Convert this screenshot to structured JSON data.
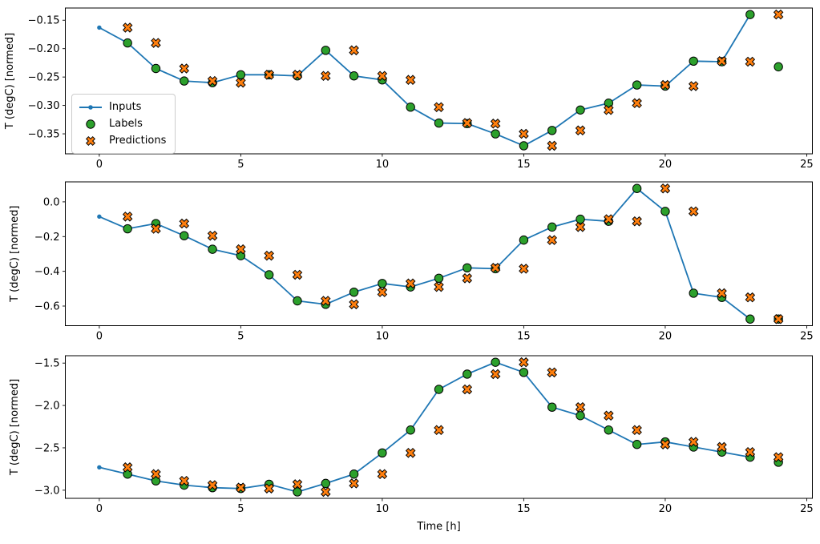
{
  "colors": {
    "inputs": "#1f77b4",
    "labels": "#2ca02c",
    "predictions": "#ff7f0e",
    "marker_edge": "#000000",
    "axes": "#000000",
    "legend_border": "#cccccc"
  },
  "legend": {
    "entries": [
      {
        "label": "Inputs"
      },
      {
        "label": "Labels"
      },
      {
        "label": "Predictions"
      }
    ]
  },
  "chart_data": [
    {
      "type": "line",
      "ylabel": "T (degC) [normed]",
      "xlabel": "",
      "grid": false,
      "xlim": [
        -1.2,
        25.2
      ],
      "ylim": [
        -0.3852,
        -0.1285
      ],
      "xticks": {
        "values": [
          0,
          5,
          10,
          15,
          20,
          25
        ],
        "labels": [
          "0",
          "5",
          "10",
          "15",
          "20",
          "25"
        ]
      },
      "yticks": {
        "values": [
          -0.15,
          -0.2,
          -0.25,
          -0.3,
          -0.35
        ],
        "labels": [
          "−0.15",
          "−0.20",
          "−0.25",
          "−0.30",
          "−0.35"
        ]
      },
      "series": [
        {
          "name": "Inputs",
          "type": "line",
          "marker": "dot",
          "color": "#1f77b4",
          "x": [
            0,
            1,
            2,
            3,
            4,
            5,
            6,
            7,
            8,
            9,
            10,
            11,
            12,
            13,
            14,
            15,
            16,
            17,
            18,
            19,
            20,
            21,
            22,
            23
          ],
          "y": [
            -0.163,
            -0.19,
            -0.235,
            -0.257,
            -0.26,
            -0.246,
            -0.246,
            -0.248,
            -0.203,
            -0.248,
            -0.255,
            -0.303,
            -0.331,
            -0.332,
            -0.35,
            -0.371,
            -0.344,
            -0.308,
            -0.296,
            -0.264,
            -0.266,
            -0.222,
            -0.223,
            -0.14
          ]
        },
        {
          "name": "Labels",
          "type": "scatter",
          "marker": "circle",
          "color": "#2ca02c",
          "edge": "#000000",
          "x": [
            1,
            2,
            3,
            4,
            5,
            6,
            7,
            8,
            9,
            10,
            11,
            12,
            13,
            14,
            15,
            16,
            17,
            18,
            19,
            20,
            21,
            22,
            23,
            24
          ],
          "y": [
            -0.19,
            -0.235,
            -0.257,
            -0.26,
            -0.246,
            -0.246,
            -0.248,
            -0.203,
            -0.248,
            -0.255,
            -0.303,
            -0.331,
            -0.332,
            -0.35,
            -0.371,
            -0.344,
            -0.308,
            -0.296,
            -0.264,
            -0.266,
            -0.222,
            -0.223,
            -0.14,
            -0.232
          ]
        },
        {
          "name": "Predictions",
          "type": "scatter",
          "marker": "X",
          "color": "#ff7f0e",
          "edge": "#000000",
          "x": [
            1,
            2,
            3,
            4,
            5,
            6,
            7,
            8,
            9,
            10,
            11,
            12,
            13,
            14,
            15,
            16,
            17,
            18,
            19,
            20,
            21,
            22,
            23,
            24
          ],
          "y": [
            -0.163,
            -0.19,
            -0.235,
            -0.257,
            -0.26,
            -0.246,
            -0.246,
            -0.248,
            -0.203,
            -0.248,
            -0.255,
            -0.303,
            -0.331,
            -0.332,
            -0.35,
            -0.371,
            -0.344,
            -0.308,
            -0.296,
            -0.264,
            -0.266,
            -0.222,
            -0.223,
            -0.14
          ]
        }
      ]
    },
    {
      "type": "line",
      "ylabel": "T (degC) [normed]",
      "xlabel": "",
      "grid": false,
      "xlim": [
        -1.2,
        25.2
      ],
      "ylim": [
        -0.713,
        0.115
      ],
      "xticks": {
        "values": [
          0,
          5,
          10,
          15,
          20,
          25
        ],
        "labels": [
          "0",
          "5",
          "10",
          "15",
          "20",
          "25"
        ]
      },
      "yticks": {
        "values": [
          0.0,
          -0.2,
          -0.4,
          -0.6
        ],
        "labels": [
          "0.0",
          "−0.2",
          "−0.4",
          "−0.6"
        ]
      },
      "series": [
        {
          "name": "Inputs",
          "type": "line",
          "marker": "dot",
          "color": "#1f77b4",
          "x": [
            0,
            1,
            2,
            3,
            4,
            5,
            6,
            7,
            8,
            9,
            10,
            11,
            12,
            13,
            14,
            15,
            16,
            17,
            18,
            19,
            20,
            21,
            22,
            23
          ],
          "y": [
            -0.085,
            -0.155,
            -0.125,
            -0.195,
            -0.273,
            -0.31,
            -0.42,
            -0.57,
            -0.59,
            -0.52,
            -0.47,
            -0.49,
            -0.44,
            -0.38,
            -0.385,
            -0.22,
            -0.145,
            -0.1,
            -0.112,
            0.077,
            -0.055,
            -0.526,
            -0.55,
            -0.675
          ]
        },
        {
          "name": "Labels",
          "type": "scatter",
          "marker": "circle",
          "color": "#2ca02c",
          "edge": "#000000",
          "x": [
            1,
            2,
            3,
            4,
            5,
            6,
            7,
            8,
            9,
            10,
            11,
            12,
            13,
            14,
            15,
            16,
            17,
            18,
            19,
            20,
            21,
            22,
            23,
            24
          ],
          "y": [
            -0.155,
            -0.125,
            -0.195,
            -0.273,
            -0.31,
            -0.42,
            -0.57,
            -0.59,
            -0.52,
            -0.47,
            -0.49,
            -0.44,
            -0.38,
            -0.385,
            -0.22,
            -0.145,
            -0.1,
            -0.112,
            0.077,
            -0.055,
            -0.526,
            -0.55,
            -0.675,
            -0.675
          ]
        },
        {
          "name": "Predictions",
          "type": "scatter",
          "marker": "X",
          "color": "#ff7f0e",
          "edge": "#000000",
          "x": [
            1,
            2,
            3,
            4,
            5,
            6,
            7,
            8,
            9,
            10,
            11,
            12,
            13,
            14,
            15,
            16,
            17,
            18,
            19,
            20,
            21,
            22,
            23,
            24
          ],
          "y": [
            -0.085,
            -0.155,
            -0.125,
            -0.195,
            -0.273,
            -0.31,
            -0.42,
            -0.57,
            -0.59,
            -0.52,
            -0.47,
            -0.49,
            -0.44,
            -0.38,
            -0.385,
            -0.22,
            -0.145,
            -0.1,
            -0.112,
            0.077,
            -0.055,
            -0.526,
            -0.55,
            -0.675
          ]
        }
      ]
    },
    {
      "type": "line",
      "ylabel": "T (degC) [normed]",
      "xlabel": "Time [h]",
      "grid": false,
      "xlim": [
        -1.2,
        25.2
      ],
      "ylim": [
        -3.096,
        -1.413
      ],
      "xticks": {
        "values": [
          0,
          5,
          10,
          15,
          20,
          25
        ],
        "labels": [
          "0",
          "5",
          "10",
          "15",
          "20",
          "25"
        ]
      },
      "yticks": {
        "values": [
          -1.5,
          -2.0,
          -2.5,
          -3.0
        ],
        "labels": [
          "−1.5",
          "−2.0",
          "−2.5",
          "−3.0"
        ]
      },
      "series": [
        {
          "name": "Inputs",
          "type": "line",
          "marker": "dot",
          "color": "#1f77b4",
          "x": [
            0,
            1,
            2,
            3,
            4,
            5,
            6,
            7,
            8,
            9,
            10,
            11,
            12,
            13,
            14,
            15,
            16,
            17,
            18,
            19,
            20,
            21,
            22,
            23
          ],
          "y": [
            -2.73,
            -2.81,
            -2.89,
            -2.94,
            -2.97,
            -2.98,
            -2.93,
            -3.02,
            -2.92,
            -2.81,
            -2.56,
            -2.29,
            -1.81,
            -1.63,
            -1.49,
            -1.61,
            -2.02,
            -2.12,
            -2.29,
            -2.46,
            -2.43,
            -2.49,
            -2.55,
            -2.61
          ]
        },
        {
          "name": "Labels",
          "type": "scatter",
          "marker": "circle",
          "color": "#2ca02c",
          "edge": "#000000",
          "x": [
            1,
            2,
            3,
            4,
            5,
            6,
            7,
            8,
            9,
            10,
            11,
            12,
            13,
            14,
            15,
            16,
            17,
            18,
            19,
            20,
            21,
            22,
            23,
            24
          ],
          "y": [
            -2.81,
            -2.89,
            -2.94,
            -2.97,
            -2.98,
            -2.93,
            -3.02,
            -2.92,
            -2.81,
            -2.56,
            -2.29,
            -1.81,
            -1.63,
            -1.49,
            -1.61,
            -2.02,
            -2.12,
            -2.29,
            -2.46,
            -2.43,
            -2.49,
            -2.55,
            -2.61,
            -2.67
          ]
        },
        {
          "name": "Predictions",
          "type": "scatter",
          "marker": "X",
          "color": "#ff7f0e",
          "edge": "#000000",
          "x": [
            1,
            2,
            3,
            4,
            5,
            6,
            7,
            8,
            9,
            10,
            11,
            12,
            13,
            14,
            15,
            16,
            17,
            18,
            19,
            20,
            21,
            22,
            23,
            24
          ],
          "y": [
            -2.73,
            -2.81,
            -2.89,
            -2.94,
            -2.97,
            -2.98,
            -2.93,
            -3.02,
            -2.92,
            -2.81,
            -2.56,
            -2.29,
            -1.81,
            -1.63,
            -1.49,
            -1.61,
            -2.02,
            -2.12,
            -2.29,
            -2.46,
            -2.43,
            -2.49,
            -2.55,
            -2.61
          ]
        }
      ]
    }
  ]
}
